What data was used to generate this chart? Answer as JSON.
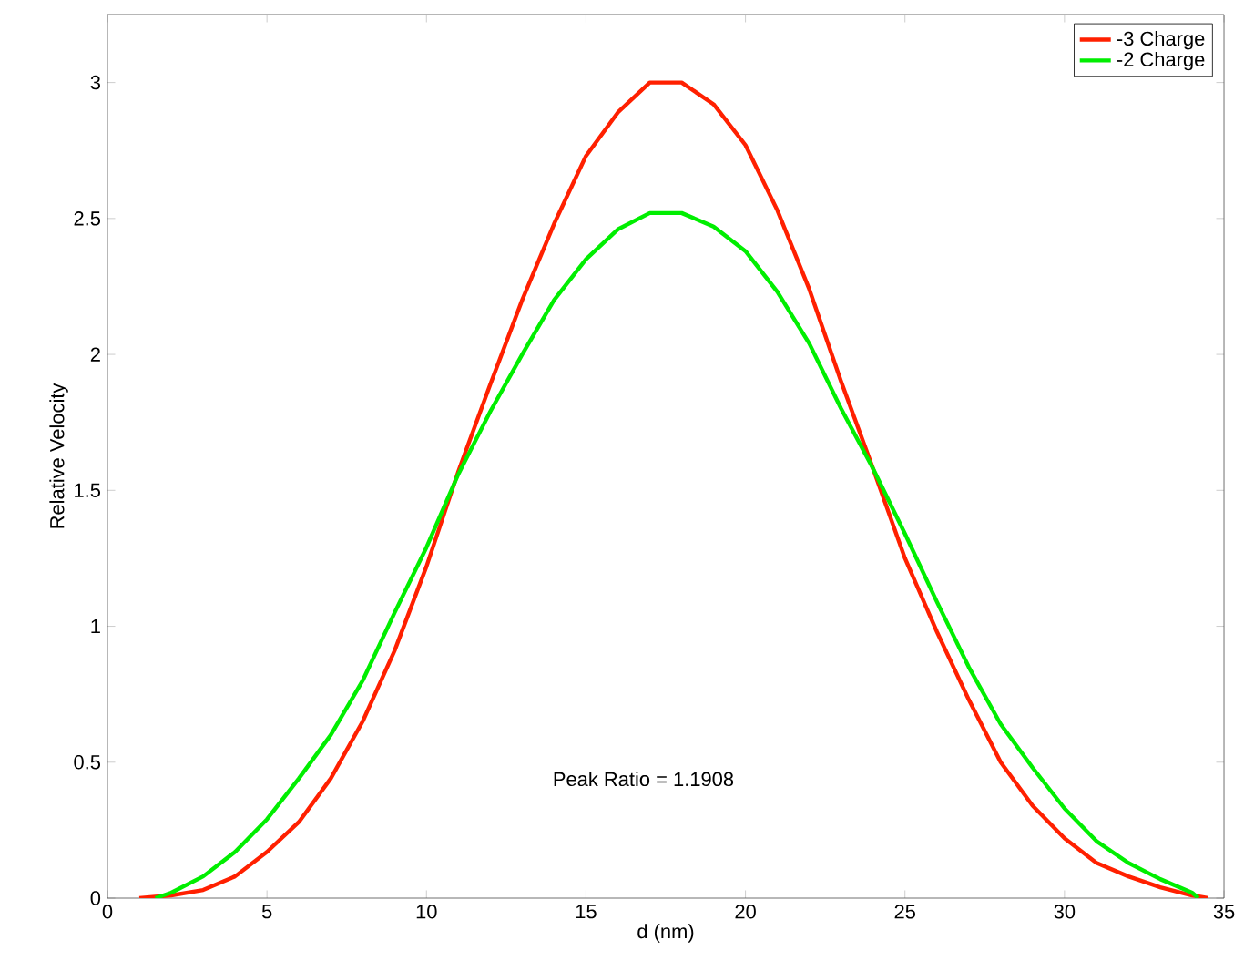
{
  "chart_data": {
    "type": "line",
    "xlabel": "d (nm)",
    "ylabel": "Relative Velocity",
    "xlim": [
      0,
      35
    ],
    "ylim": [
      0,
      3.25
    ],
    "xticks": [
      0,
      5,
      10,
      15,
      20,
      25,
      30,
      35
    ],
    "yticks": [
      0,
      0.5,
      1,
      1.5,
      2,
      2.5,
      3
    ],
    "legend": "top right",
    "grid": false,
    "marker": "none",
    "line_style": "solid",
    "annotations": [
      "Peak Ratio = 1.1908"
    ],
    "series": [
      {
        "name": "-3 Charge",
        "color": "#ff2000",
        "x": [
          1,
          2,
          3,
          4,
          5,
          6,
          7,
          8,
          9,
          10,
          11,
          12,
          13,
          14,
          15,
          16,
          17,
          18,
          19,
          20,
          21,
          22,
          23,
          24,
          25,
          26,
          27,
          28,
          29,
          30,
          31,
          32,
          33,
          34,
          34.5
        ],
        "values": [
          0,
          0.01,
          0.03,
          0.08,
          0.17,
          0.28,
          0.44,
          0.65,
          0.91,
          1.22,
          1.57,
          1.89,
          2.2,
          2.48,
          2.73,
          2.89,
          3.0,
          3.0,
          2.92,
          2.77,
          2.53,
          2.24,
          1.9,
          1.58,
          1.25,
          0.98,
          0.73,
          0.5,
          0.34,
          0.22,
          0.13,
          0.08,
          0.04,
          0.01,
          0
        ]
      },
      {
        "name": "-2 Charge",
        "color": "#00ee00",
        "x": [
          1.5,
          2,
          3,
          4,
          5,
          6,
          7,
          8,
          9,
          10,
          11,
          12,
          13,
          14,
          15,
          16,
          17,
          18,
          19,
          20,
          21,
          22,
          23,
          24,
          25,
          26,
          27,
          28,
          29,
          30,
          31,
          32,
          33,
          34,
          34.2
        ],
        "values": [
          0,
          0.02,
          0.08,
          0.17,
          0.29,
          0.44,
          0.6,
          0.8,
          1.05,
          1.29,
          1.56,
          1.79,
          2.0,
          2.2,
          2.35,
          2.46,
          2.52,
          2.52,
          2.47,
          2.38,
          2.23,
          2.04,
          1.8,
          1.58,
          1.34,
          1.09,
          0.85,
          0.64,
          0.48,
          0.33,
          0.21,
          0.13,
          0.07,
          0.02,
          0
        ]
      }
    ]
  }
}
